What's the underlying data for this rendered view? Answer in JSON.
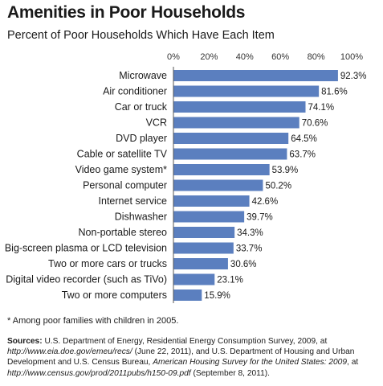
{
  "header": {
    "title": "Amenities in Poor Households",
    "subtitle": "Percent of Poor Households Which Have Each Item"
  },
  "chart_data": {
    "type": "bar",
    "orientation": "horizontal",
    "title": "Amenities in Poor Households",
    "subtitle": "Percent of Poor Households Which Have Each Item",
    "categories": [
      "Microwave",
      "Air conditioner",
      "Car or truck",
      "VCR",
      "DVD player",
      "Cable or satellite TV",
      "Video game system*",
      "Personal computer",
      "Internet service",
      "Dishwasher",
      "Non-portable stereo",
      "Big-screen plasma or LCD television",
      "Two or more cars or trucks",
      "Digital video recorder (such as TiVo)",
      "Two or more computers"
    ],
    "values": [
      92.3,
      81.6,
      74.1,
      70.6,
      64.5,
      63.7,
      53.9,
      50.2,
      42.6,
      39.7,
      34.3,
      33.7,
      30.6,
      23.1,
      15.9
    ],
    "value_labels": [
      "92.3%",
      "81.6%",
      "74.1%",
      "70.6%",
      "64.5%",
      "63.7%",
      "53.9%",
      "50.2%",
      "42.6%",
      "39.7%",
      "34.3%",
      "33.7%",
      "30.6%",
      "23.1%",
      "15.9%"
    ],
    "x_ticks": [
      "0%",
      "20%",
      "40%",
      "60%",
      "80%",
      "100%"
    ],
    "xlim": [
      0,
      100
    ],
    "axis_position": "top",
    "grid": false,
    "bar_color": "#5b7fbf"
  },
  "footer": {
    "footnote": "* Among poor families with children in 2005.",
    "sources_label": "Sources:",
    "sources_p1": " U.S. Department of Energy, Residential Energy Consumption Survey, 2009, at ",
    "sources_url1": "http://www.eia.doe.gov/emeu/recs/",
    "sources_p2": " (June 22, 2011), and U.S. Department of Housing and Urban Development and U.S. Census Bureau, ",
    "sources_pub": "American Housing Survey for the United States: 2009",
    "sources_p3": ", at ",
    "sources_url2": "http://www.census.gov/prod/2011pubs/h150-09.pdf",
    "sources_p4": " (September 8, 2011)."
  }
}
